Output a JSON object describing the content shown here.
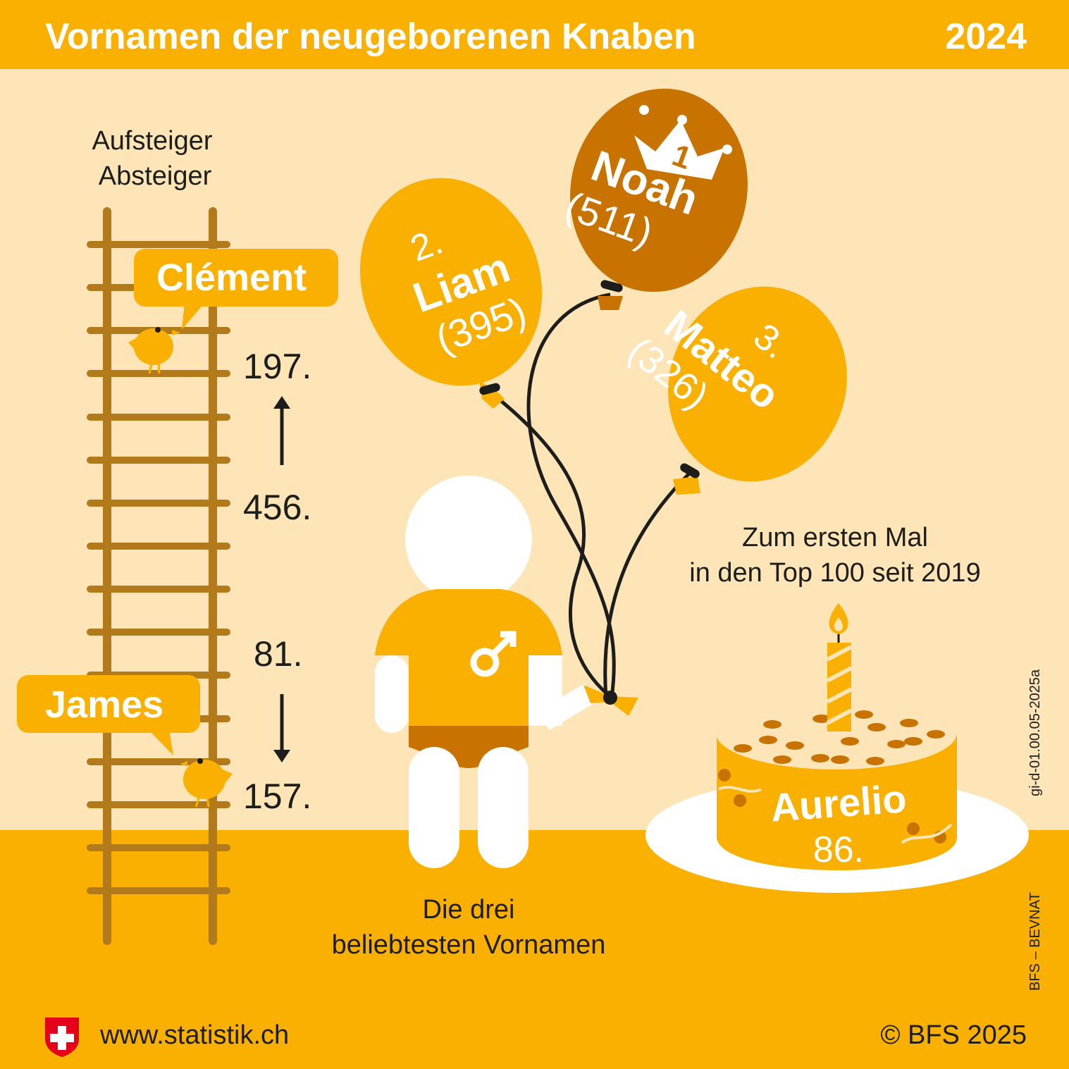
{
  "header": {
    "title": "Vornamen der neugeborenen Knaben",
    "year": "2024"
  },
  "ladder": {
    "legend_up": "Aufsteiger",
    "legend_down": "Absteiger",
    "climber_up": {
      "name": "Clément",
      "rank_new": "197.",
      "rank_old": "456."
    },
    "climber_down": {
      "name": "James",
      "rank_old": "81.",
      "rank_new": "157."
    }
  },
  "balloons": [
    {
      "place": "1",
      "name": "Noah",
      "count": "(511)"
    },
    {
      "place": "2.",
      "name": "Liam",
      "count": "(395)"
    },
    {
      "place": "3.",
      "name": "Matteo",
      "count": "(326)"
    }
  ],
  "top3_caption": {
    "line1": "Die drei",
    "line2": "beliebtesten Vornamen"
  },
  "newcomer": {
    "caption_line1": "Zum ersten Mal",
    "caption_line2": "in den Top 100 seit 2019",
    "name": "Aurelio",
    "rank": "86."
  },
  "side_notes": {
    "code": "gi-d-01.00.05-2025a",
    "source": "BFS – BEVNAT"
  },
  "footer": {
    "url": "www.statistik.ch",
    "copyright": "© BFS 2025"
  },
  "colors": {
    "orange": "#f9b000",
    "dark_orange": "#c87200",
    "brown": "#b37a1c",
    "light_bg": "#fde5b8"
  }
}
